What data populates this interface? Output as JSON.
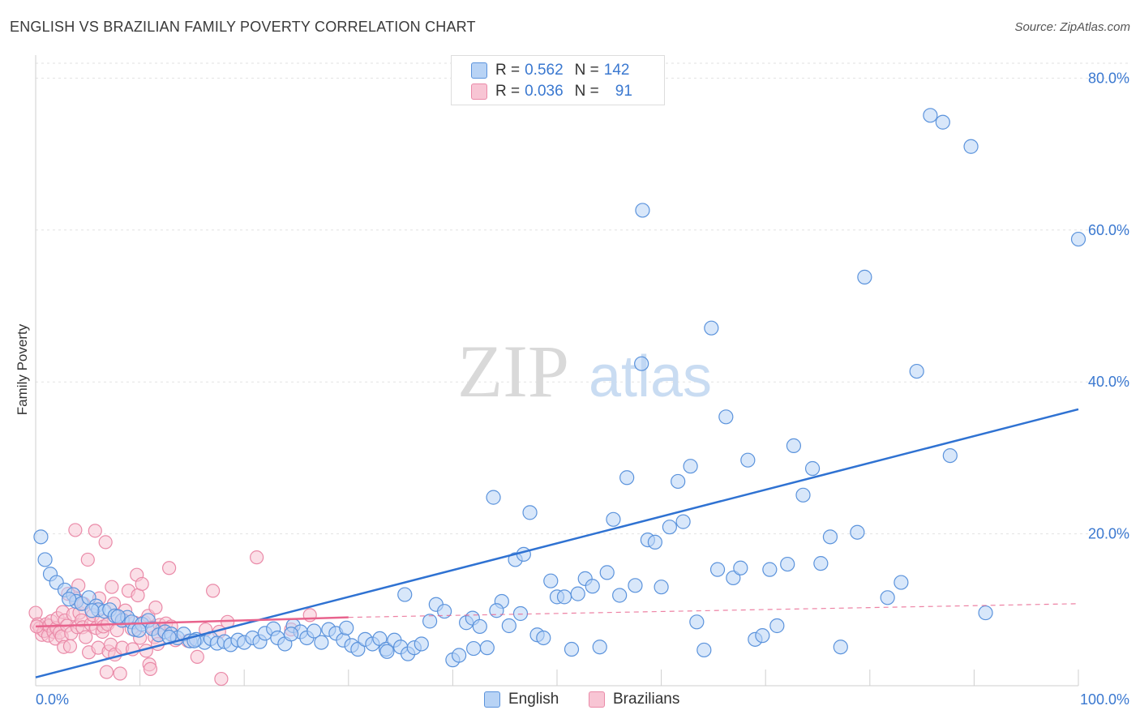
{
  "header": {
    "title": "ENGLISH VS BRAZILIAN FAMILY POVERTY CORRELATION CHART",
    "source": "Source: ZipAtlas.com"
  },
  "watermark": {
    "zip": "ZIP",
    "atlas": "atlas"
  },
  "legend_top": [
    {
      "r_label": "R =",
      "r_value": "0.562",
      "n_label": "N =",
      "n_value": "142"
    },
    {
      "r_label": "R =",
      "r_value": "0.036",
      "n_label": "N =",
      "n_value": "91"
    }
  ],
  "legend_bottom": {
    "english": "English",
    "brazilians": "Brazilians"
  },
  "colors": {
    "english_fill": "#b8d3f5",
    "english_stroke": "#5b93dc",
    "english_line": "#2f72d2",
    "brazil_fill": "#f8c5d4",
    "brazil_stroke": "#ea8aa8",
    "brazil_line": "#e8638d",
    "tick_label": "#3a78d0"
  },
  "chart_data": {
    "type": "scatter",
    "title": "ENGLISH VS BRAZILIAN FAMILY POVERTY CORRELATION CHART",
    "ylabel": "Family Poverty",
    "xlabel": "",
    "xlim": [
      0,
      100
    ],
    "ylim": [
      0,
      80
    ],
    "x_tick_labels": [
      "0.0%",
      "100.0%"
    ],
    "y_tick_labels": [
      "20.0%",
      "40.0%",
      "60.0%",
      "80.0%"
    ],
    "y_ticks": [
      20,
      40,
      60,
      80
    ],
    "grid": true,
    "legend_placement": "top-center",
    "series": [
      {
        "name": "English",
        "r": 0.562,
        "n": 142,
        "trend": {
          "x": [
            0,
            100
          ],
          "y": [
            1.1,
            36.4
          ]
        },
        "points": [
          [
            0.5,
            19.6
          ],
          [
            0.9,
            16.6
          ],
          [
            1.4,
            14.7
          ],
          [
            2.0,
            13.6
          ],
          [
            2.8,
            12.6
          ],
          [
            3.6,
            12.0
          ],
          [
            3.9,
            11.1
          ],
          [
            4.4,
            10.8
          ],
          [
            5.1,
            11.6
          ],
          [
            5.8,
            10.5
          ],
          [
            6.0,
            10.0
          ],
          [
            6.6,
            9.8
          ],
          [
            7.1,
            10.0
          ],
          [
            7.6,
            9.2
          ],
          [
            8.3,
            8.6
          ],
          [
            8.8,
            9.0
          ],
          [
            9.2,
            8.4
          ],
          [
            9.5,
            7.4
          ],
          [
            10.2,
            8.1
          ],
          [
            10.8,
            8.6
          ],
          [
            11.2,
            7.5
          ],
          [
            11.8,
            6.7
          ],
          [
            12.4,
            7.1
          ],
          [
            13.0,
            6.8
          ],
          [
            13.6,
            6.3
          ],
          [
            14.2,
            6.8
          ],
          [
            14.8,
            5.9
          ],
          [
            15.4,
            6.1
          ],
          [
            16.2,
            5.7
          ],
          [
            16.8,
            6.2
          ],
          [
            17.4,
            5.6
          ],
          [
            18.1,
            5.8
          ],
          [
            18.7,
            5.4
          ],
          [
            19.4,
            6.0
          ],
          [
            20.0,
            5.7
          ],
          [
            20.8,
            6.3
          ],
          [
            21.5,
            5.8
          ],
          [
            22.0,
            6.9
          ],
          [
            22.8,
            7.5
          ],
          [
            23.2,
            6.3
          ],
          [
            23.9,
            5.5
          ],
          [
            24.7,
            7.9
          ],
          [
            25.4,
            7.1
          ],
          [
            26.0,
            6.3
          ],
          [
            26.7,
            7.2
          ],
          [
            27.4,
            5.7
          ],
          [
            28.1,
            7.4
          ],
          [
            28.8,
            6.9
          ],
          [
            29.5,
            6.0
          ],
          [
            30.3,
            5.3
          ],
          [
            30.9,
            4.8
          ],
          [
            31.6,
            6.1
          ],
          [
            32.3,
            5.5
          ],
          [
            33.0,
            6.2
          ],
          [
            33.6,
            4.8
          ],
          [
            34.4,
            6.0
          ],
          [
            35.0,
            5.1
          ],
          [
            35.7,
            4.2
          ],
          [
            36.3,
            5.0
          ],
          [
            37.0,
            5.5
          ],
          [
            37.8,
            8.5
          ],
          [
            38.4,
            10.7
          ],
          [
            39.2,
            9.8
          ],
          [
            40.0,
            3.4
          ],
          [
            40.6,
            4.0
          ],
          [
            41.3,
            8.3
          ],
          [
            41.9,
            8.9
          ],
          [
            42.6,
            7.8
          ],
          [
            43.3,
            5.0
          ],
          [
            43.9,
            24.8
          ],
          [
            44.7,
            11.1
          ],
          [
            45.4,
            7.9
          ],
          [
            46.0,
            16.6
          ],
          [
            46.8,
            17.3
          ],
          [
            47.4,
            22.8
          ],
          [
            48.1,
            6.7
          ],
          [
            48.7,
            6.3
          ],
          [
            49.4,
            13.8
          ],
          [
            50.0,
            11.7
          ],
          [
            50.7,
            11.7
          ],
          [
            51.4,
            4.8
          ],
          [
            52.0,
            12.1
          ],
          [
            52.7,
            14.1
          ],
          [
            53.4,
            13.1
          ],
          [
            54.1,
            5.1
          ],
          [
            54.8,
            14.9
          ],
          [
            55.4,
            21.9
          ],
          [
            56.0,
            11.9
          ],
          [
            56.7,
            27.4
          ],
          [
            57.5,
            13.2
          ],
          [
            58.1,
            42.4
          ],
          [
            58.7,
            19.2
          ],
          [
            59.4,
            18.9
          ],
          [
            60.0,
            13.0
          ],
          [
            60.8,
            20.9
          ],
          [
            61.6,
            26.9
          ],
          [
            62.1,
            21.6
          ],
          [
            62.8,
            28.9
          ],
          [
            63.4,
            8.4
          ],
          [
            64.1,
            4.7
          ],
          [
            64.8,
            47.1
          ],
          [
            65.4,
            15.3
          ],
          [
            66.2,
            35.4
          ],
          [
            66.9,
            14.2
          ],
          [
            67.6,
            15.5
          ],
          [
            68.3,
            29.7
          ],
          [
            69.0,
            6.1
          ],
          [
            69.7,
            6.6
          ],
          [
            70.4,
            15.3
          ],
          [
            71.1,
            7.9
          ],
          [
            72.1,
            16.0
          ],
          [
            72.7,
            31.6
          ],
          [
            73.6,
            25.1
          ],
          [
            74.5,
            28.6
          ],
          [
            75.3,
            16.1
          ],
          [
            76.2,
            19.6
          ],
          [
            77.2,
            5.1
          ],
          [
            78.8,
            20.2
          ],
          [
            79.5,
            53.8
          ],
          [
            81.7,
            11.6
          ],
          [
            83.0,
            13.6
          ],
          [
            84.5,
            41.4
          ],
          [
            87.7,
            30.3
          ],
          [
            87.0,
            74.2
          ],
          [
            89.7,
            71.0
          ],
          [
            91.1,
            9.6
          ],
          [
            100.0,
            58.8
          ],
          [
            85.8,
            75.1
          ],
          [
            58.2,
            62.6
          ],
          [
            42.0,
            4.9
          ],
          [
            44.2,
            9.9
          ],
          [
            46.5,
            9.5
          ],
          [
            33.7,
            4.5
          ],
          [
            35.4,
            12.0
          ],
          [
            29.8,
            7.6
          ],
          [
            24.5,
            6.8
          ],
          [
            15.2,
            5.9
          ],
          [
            12.8,
            6.4
          ],
          [
            9.9,
            7.3
          ],
          [
            7.9,
            9.1
          ],
          [
            5.4,
            9.9
          ],
          [
            3.2,
            11.4
          ]
        ]
      },
      {
        "name": "Brazilians",
        "r": 0.036,
        "n": 91,
        "trend": {
          "x": [
            0,
            30
          ],
          "y": [
            7.8,
            9.0
          ]
        },
        "trend_extension": {
          "x": [
            30,
            100
          ],
          "y": [
            9.0,
            10.8
          ]
        },
        "points": [
          [
            0.0,
            9.6
          ],
          [
            0.2,
            8.1
          ],
          [
            0.4,
            7.6
          ],
          [
            0.6,
            6.7
          ],
          [
            0.8,
            7.2
          ],
          [
            1.0,
            8.1
          ],
          [
            1.2,
            6.6
          ],
          [
            1.3,
            7.9
          ],
          [
            1.5,
            8.5
          ],
          [
            1.7,
            7.1
          ],
          [
            1.9,
            6.2
          ],
          [
            2.0,
            7.6
          ],
          [
            2.1,
            8.9
          ],
          [
            2.3,
            7.0
          ],
          [
            2.5,
            6.5
          ],
          [
            2.6,
            9.7
          ],
          [
            2.7,
            5.1
          ],
          [
            2.8,
            8.6
          ],
          [
            3.0,
            7.9
          ],
          [
            3.1,
            12.1
          ],
          [
            3.3,
            5.2
          ],
          [
            3.4,
            6.9
          ],
          [
            3.6,
            9.4
          ],
          [
            3.8,
            20.5
          ],
          [
            3.9,
            11.4
          ],
          [
            4.0,
            7.7
          ],
          [
            4.1,
            13.2
          ],
          [
            4.2,
            9.6
          ],
          [
            4.4,
            8.6
          ],
          [
            4.5,
            7.7
          ],
          [
            4.6,
            10.8
          ],
          [
            4.8,
            6.4
          ],
          [
            5.0,
            16.6
          ],
          [
            5.1,
            4.4
          ],
          [
            5.3,
            8.1
          ],
          [
            5.5,
            9.3
          ],
          [
            5.7,
            20.4
          ],
          [
            5.8,
            7.6
          ],
          [
            6.0,
            5.0
          ],
          [
            6.1,
            11.5
          ],
          [
            6.3,
            8.6
          ],
          [
            6.4,
            7.1
          ],
          [
            6.5,
            7.8
          ],
          [
            6.7,
            18.9
          ],
          [
            6.8,
            1.8
          ],
          [
            6.9,
            8.1
          ],
          [
            7.0,
            4.5
          ],
          [
            7.2,
            5.4
          ],
          [
            7.3,
            13.0
          ],
          [
            7.5,
            10.8
          ],
          [
            7.6,
            4.1
          ],
          [
            7.8,
            7.3
          ],
          [
            7.9,
            9.1
          ],
          [
            8.1,
            1.6
          ],
          [
            8.3,
            5.0
          ],
          [
            8.4,
            8.7
          ],
          [
            8.6,
            9.9
          ],
          [
            8.9,
            12.5
          ],
          [
            9.2,
            7.5
          ],
          [
            9.3,
            4.8
          ],
          [
            9.5,
            8.3
          ],
          [
            9.7,
            14.6
          ],
          [
            9.8,
            11.9
          ],
          [
            10.0,
            6.3
          ],
          [
            10.2,
            13.4
          ],
          [
            10.4,
            8.4
          ],
          [
            10.6,
            4.6
          ],
          [
            10.8,
            9.2
          ],
          [
            10.9,
            2.8
          ],
          [
            11.0,
            2.2
          ],
          [
            11.2,
            7.7
          ],
          [
            11.4,
            6.4
          ],
          [
            11.5,
            10.3
          ],
          [
            11.7,
            5.5
          ],
          [
            11.9,
            8.0
          ],
          [
            12.1,
            7.4
          ],
          [
            12.5,
            8.2
          ],
          [
            12.8,
            15.5
          ],
          [
            13.0,
            7.8
          ],
          [
            13.4,
            6.0
          ],
          [
            14.6,
            5.9
          ],
          [
            15.5,
            3.8
          ],
          [
            16.3,
            7.4
          ],
          [
            17.0,
            12.5
          ],
          [
            17.6,
            7.1
          ],
          [
            17.8,
            0.9
          ],
          [
            18.4,
            8.4
          ],
          [
            21.2,
            16.9
          ],
          [
            24.5,
            7.4
          ],
          [
            26.3,
            9.3
          ],
          [
            0.1,
            7.8
          ]
        ]
      }
    ]
  }
}
